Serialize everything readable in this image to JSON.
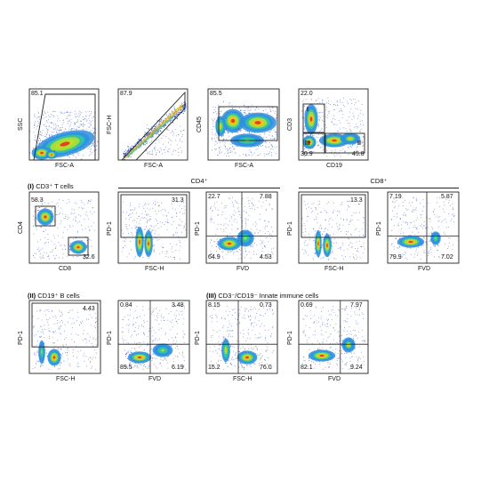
{
  "sections": {
    "I": {
      "roman": "(I)",
      "text": "CD3⁺ T cells"
    },
    "II": {
      "roman": "(II)",
      "text": "CD19⁺ B cells"
    },
    "III": {
      "roman": "(III)",
      "text": "CD3⁻/CD19⁻ Innate immune cells"
    }
  },
  "groups": {
    "cd4": "CD4⁺",
    "cd8": "CD8⁺"
  },
  "chart_data": [
    {
      "id": "p1",
      "type": "scatter",
      "xlabel": "FSC-A",
      "ylabel": "SSC",
      "gates": [
        {
          "shape": "polygon",
          "value": "85.1"
        }
      ]
    },
    {
      "id": "p2",
      "type": "scatter",
      "xlabel": "FSC-A",
      "ylabel": "FSC-H",
      "gates": [
        {
          "shape": "polygon",
          "value": "87.9"
        }
      ]
    },
    {
      "id": "p3",
      "type": "scatter",
      "xlabel": "FSC-A",
      "ylabel": "CD45",
      "gates": [
        {
          "shape": "rect",
          "value": "85.5"
        }
      ]
    },
    {
      "id": "p4",
      "type": "scatter",
      "xlabel": "CD19",
      "ylabel": "CD3",
      "gates": [
        {
          "name": "I",
          "value": "22.0"
        },
        {
          "name": "III",
          "value": "30.9"
        },
        {
          "name": "II",
          "value": "45.8"
        }
      ]
    },
    {
      "id": "p5",
      "type": "scatter",
      "xlabel": "CD8",
      "ylabel": "CD4",
      "gates": [
        {
          "population": "CD4",
          "value": "58.3"
        },
        {
          "population": "CD8",
          "value": "32.6"
        }
      ]
    },
    {
      "id": "p6",
      "type": "scatter",
      "xlabel": "FSC-H",
      "ylabel": "PD-1",
      "gates": [
        {
          "population": "PD-1+",
          "value": "31.3"
        }
      ]
    },
    {
      "id": "p7",
      "type": "scatter",
      "xlabel": "FVD",
      "ylabel": "PD-1",
      "quadrants": {
        "upper_left": "22.7",
        "upper_right": "7.88",
        "lower_left": "64.9",
        "lower_right": "4.53"
      }
    },
    {
      "id": "p8",
      "type": "scatter",
      "xlabel": "FSC-H",
      "ylabel": "PD-1",
      "gates": [
        {
          "population": "PD-1+",
          "value": "13.3"
        }
      ]
    },
    {
      "id": "p9",
      "type": "scatter",
      "xlabel": "FVD",
      "ylabel": "PD-1",
      "quadrants": {
        "upper_left": "7.19",
        "upper_right": "5.87",
        "lower_left": "79.9",
        "lower_right": "7.02"
      }
    },
    {
      "id": "p10",
      "type": "scatter",
      "xlabel": "FSC-H",
      "ylabel": "PD-1",
      "gates": [
        {
          "population": "PD-1+",
          "value": "4.43"
        }
      ]
    },
    {
      "id": "p11",
      "type": "scatter",
      "xlabel": "FVD",
      "ylabel": "PD-1",
      "quadrants": {
        "upper_left": "0.84",
        "upper_right": "3.48",
        "lower_left": "89.5",
        "lower_right": "6.19"
      }
    },
    {
      "id": "p12",
      "type": "scatter",
      "xlabel": "FSC-H",
      "ylabel": "PD-1",
      "quadrants": {
        "upper_left": "8.15",
        "upper_right": "0.73",
        "lower_left": "15.2",
        "lower_right": "76.0"
      }
    },
    {
      "id": "p13",
      "type": "scatter",
      "xlabel": "FVD",
      "ylabel": "PD-1",
      "quadrants": {
        "upper_left": "0.69",
        "upper_right": "7.97",
        "lower_left": "82.1",
        "lower_right": "9.24"
      }
    }
  ]
}
